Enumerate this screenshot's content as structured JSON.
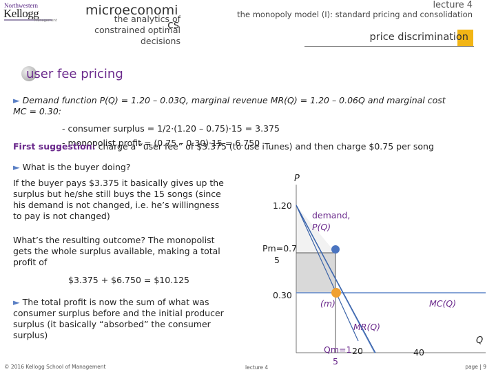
{
  "header": {
    "logo_top": "Northwestern",
    "logo_main": "Kellogg",
    "logo_tag": "Management",
    "course_title": "microeconomi",
    "course_sub_line1": "the analytics of",
    "course_sub_line2": "constrained optimal",
    "course_sub_line3": "decisions",
    "course_cs": "cs",
    "lecture": "lecture 4",
    "lecture_title": "the monopoly model (I): standard pricing and consolidation",
    "section": "price discrimination"
  },
  "topic": "user fee pricing",
  "intro": {
    "bullet": "►",
    "text1": "Demand function P(Q) = 1.20 – 0.03Q, marginal revenue MR(Q) = 1.20 – 0.06Q and marginal cost",
    "text2": "MC = 0.30:",
    "cs_line": "- consumer surplus = 1/2·(1.20 – 0.75)·15 = 3.375",
    "profit_line": "- monopolist profit = (0.75 – 0.30)·15 = 6.750",
    "suggestion_label": "First suggestion:",
    "suggestion_text": "charge a “user fee” of $3.375 (to use iTunes) and then charge $0.75 per song"
  },
  "left_text": {
    "q1": "What is the buyer doing?",
    "p1_l1": "If the buyer pays $3.375 it basically gives up the",
    "p1_l2": "surplus but he/she still buys the 15 songs (since",
    "p1_l3": "his demand is not changed, i.e. he’s willingness",
    "p1_l4": "to pay is not changed)",
    "p2_l1": "What’s the resulting outcome? The monopolist",
    "p2_l2": "gets the whole surplus available, making a total",
    "p2_l3": "profit of",
    "total": "$3.375 + $6.750 = $10.125",
    "p3_l1": "The total profit is now the sum of what was",
    "p3_l2": "consumer surplus before and the initial producer",
    "p3_l3": "surplus (it basically “absorbed” the consumer",
    "p3_l4": "surplus)"
  },
  "graph": {
    "axis_p": "P",
    "axis_q": "Q",
    "label_120": "1.20",
    "label_pm1": "Pm=0.7",
    "label_pm2": "5",
    "label_030": "0.30",
    "label_qm1": "Qm=1",
    "label_qm2": "5",
    "label_20": "20",
    "label_40": "40",
    "demand_label1": "demand,",
    "demand_label2": "P(Q)",
    "m_label": "(m)",
    "mc_label": "MC(Q)",
    "mr_label": "MR(Q)",
    "colors": {
      "demand": "#5f86c8",
      "mr": "#3b63a8",
      "mc": "#5f86c8",
      "point_m": "#f0a030",
      "point_d": "#4a74c0",
      "profit_fill": "#d9d9d9",
      "cs_fill": "#e8e8e8"
    }
  },
  "footer": {
    "copyright": "© 2016 Kellogg School of Management",
    "center": "lecture 4",
    "page": "page | 9"
  }
}
